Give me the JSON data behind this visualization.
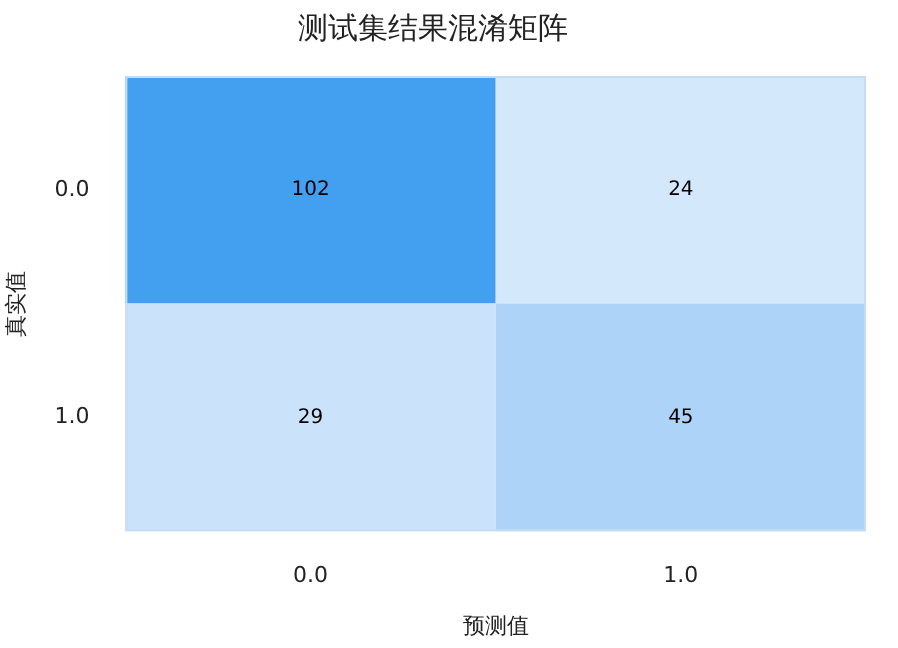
{
  "chart_data": {
    "type": "heatmap",
    "title": "测试集结果混淆矩阵",
    "xlabel": "预测值",
    "ylabel": "真实值",
    "categories": [
      "0.0",
      "1.0"
    ],
    "y_categories": [
      "0.0",
      "1.0"
    ],
    "cells": [
      [
        102,
        24
      ],
      [
        29,
        45
      ]
    ],
    "data_labels": true
  }
}
